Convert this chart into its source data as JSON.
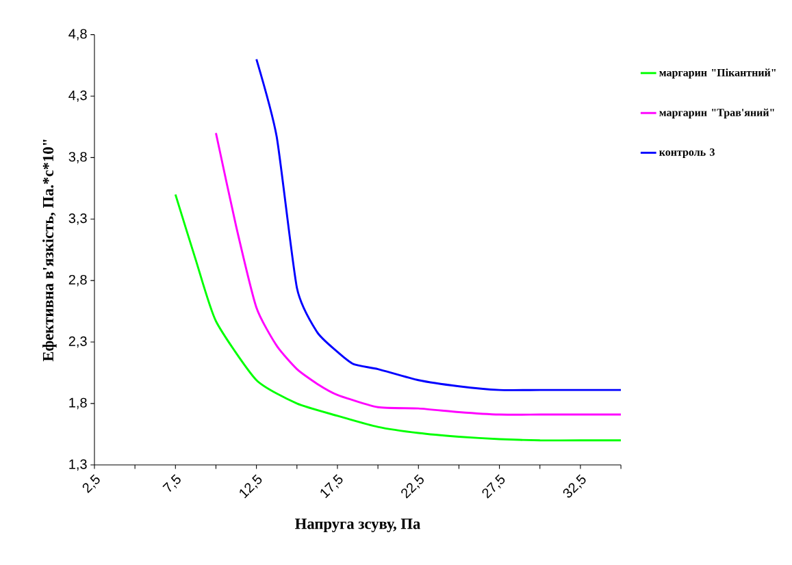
{
  "chart_data": {
    "type": "line",
    "xlabel": "Напруга зсуву, Па",
    "ylabel": "Ефективна в'язкість, Па.*с*10\"",
    "xlim": [
      2.5,
      35
    ],
    "ylim": [
      1.3,
      4.8
    ],
    "xticks": [
      {
        "value": 2.5,
        "label": "2,5"
      },
      {
        "value": 5,
        "label": null
      },
      {
        "value": 7.5,
        "label": "7,5"
      },
      {
        "value": 10,
        "label": null
      },
      {
        "value": 12.5,
        "label": "12,5"
      },
      {
        "value": 15,
        "label": null
      },
      {
        "value": 17.5,
        "label": "17,5"
      },
      {
        "value": 20,
        "label": null
      },
      {
        "value": 22.5,
        "label": "22,5"
      },
      {
        "value": 25,
        "label": null
      },
      {
        "value": 27.5,
        "label": "27,5"
      },
      {
        "value": 30,
        "label": null
      },
      {
        "value": 32.5,
        "label": "32,5"
      },
      {
        "value": 35,
        "label": null
      }
    ],
    "yticks": [
      {
        "value": 1.3,
        "label": "1,3"
      },
      {
        "value": 1.8,
        "label": "1,8"
      },
      {
        "value": 2.3,
        "label": "2,3"
      },
      {
        "value": 2.8,
        "label": "2,8"
      },
      {
        "value": 3.3,
        "label": "3,3"
      },
      {
        "value": 3.8,
        "label": "3,8"
      },
      {
        "value": 4.3,
        "label": "4,3"
      },
      {
        "value": 4.8,
        "label": "4,8"
      }
    ],
    "grid": false,
    "legend": "right",
    "marker": "none",
    "line_style": "solid",
    "series": [
      {
        "name": "маргарин \"Пікантний\"",
        "color": "#00ff00",
        "x": [
          7.5,
          8.75,
          10,
          12.5,
          15,
          17.5,
          20,
          22.5,
          25,
          27.5,
          30,
          32.5,
          35
        ],
        "values": [
          3.5,
          2.97,
          2.47,
          1.99,
          1.8,
          1.7,
          1.61,
          1.56,
          1.53,
          1.51,
          1.5,
          1.5,
          1.5
        ]
      },
      {
        "name": "маргарин \"Трав'яний\"",
        "color": "#ff00ff",
        "x": [
          10,
          11.25,
          12.5,
          13.75,
          15,
          16.25,
          17.5,
          20,
          22.5,
          25,
          27.5,
          30,
          32.5,
          35
        ],
        "values": [
          4.0,
          3.24,
          2.58,
          2.27,
          2.08,
          1.96,
          1.87,
          1.77,
          1.76,
          1.73,
          1.71,
          1.71,
          1.71,
          1.71
        ]
      },
      {
        "name": "контроль 3",
        "color": "#0000ff",
        "x": [
          12.5,
          13.75,
          15,
          16.25,
          17.5,
          18.5,
          20,
          22.5,
          25,
          27.5,
          30,
          32.5,
          35
        ],
        "values": [
          4.6,
          3.97,
          2.74,
          2.38,
          2.22,
          2.12,
          2.08,
          1.99,
          1.94,
          1.91,
          1.91,
          1.91,
          1.91
        ]
      }
    ]
  }
}
